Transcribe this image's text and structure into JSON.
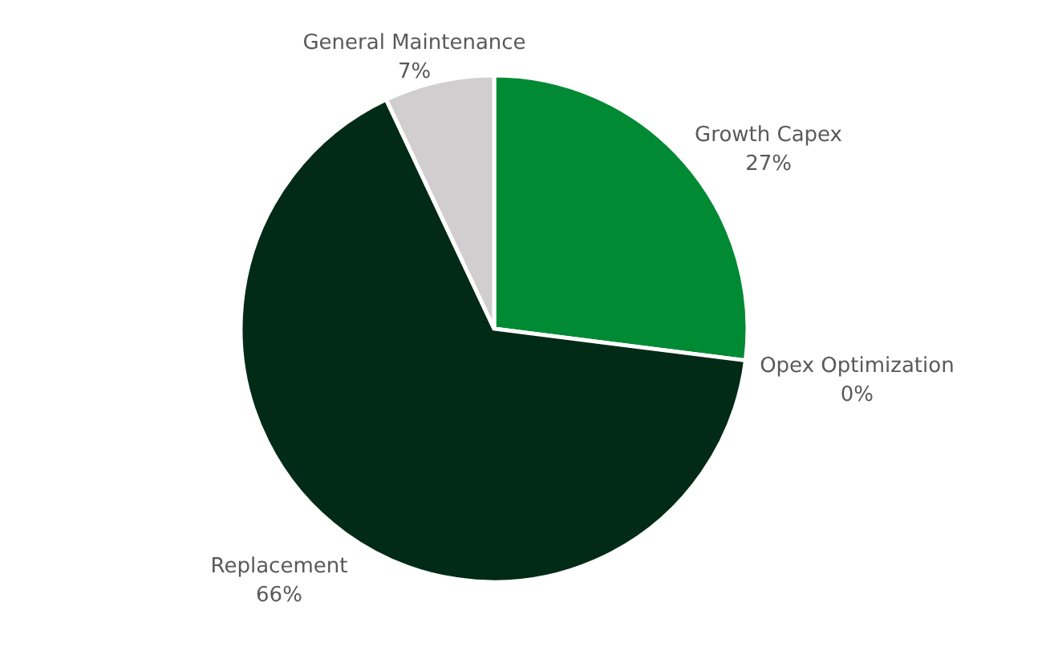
{
  "chart_data": {
    "type": "pie",
    "categories": [
      "Growth Capex",
      "Opex Optimization",
      "Replacement",
      "General Maintenance"
    ],
    "values": [
      27,
      0,
      66,
      7
    ],
    "colors": [
      "#008a34",
      "#4e9a5a",
      "#022b17",
      "#d0cece"
    ],
    "value_labels": [
      "27%",
      "0%",
      "66%",
      "7%"
    ]
  }
}
